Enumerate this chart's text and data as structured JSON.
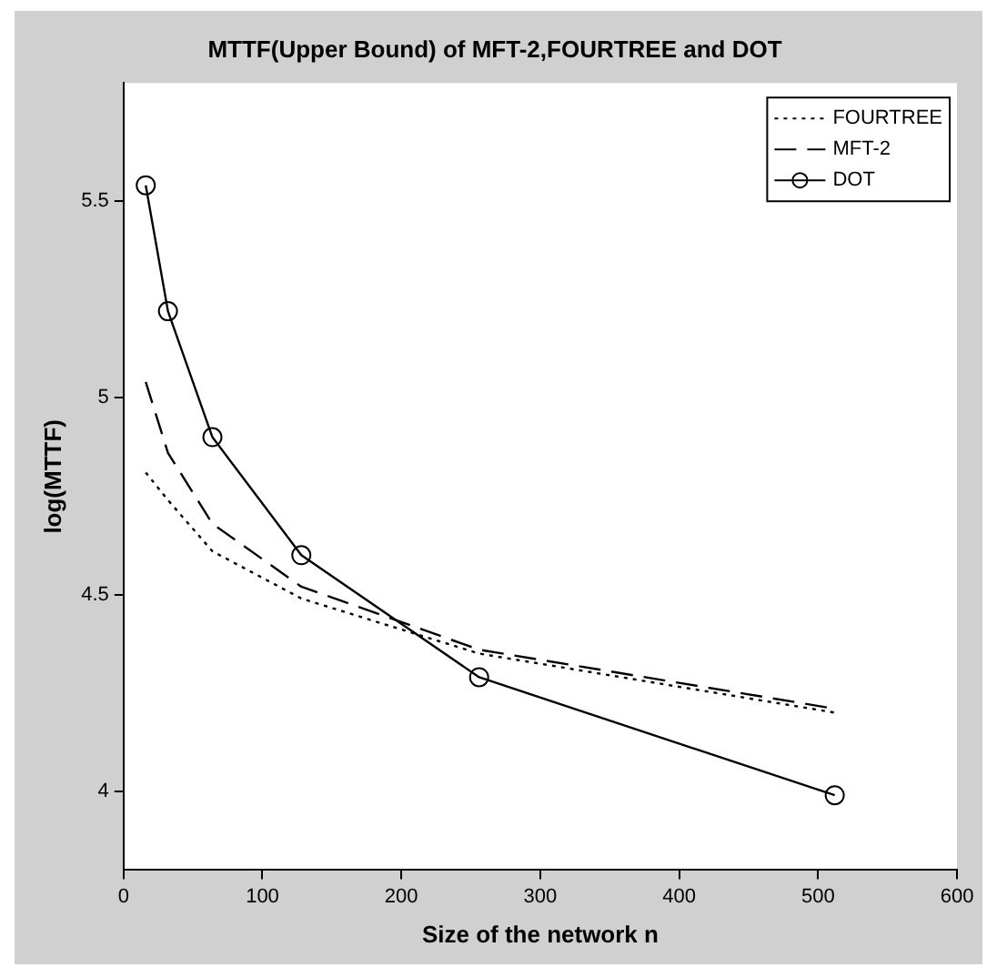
{
  "chart_data": {
    "type": "line",
    "title": "MTTF(Upper Bound) of MFT-2,FOURTREE and DOT",
    "xlabel": "Size of the network n",
    "ylabel": "log(MTTF)",
    "x": [
      16,
      32,
      64,
      128,
      256,
      512
    ],
    "xlim": [
      0,
      600
    ],
    "xticks": [
      0,
      100,
      200,
      300,
      400,
      500,
      600
    ],
    "ylim": [
      3.8,
      5.8
    ],
    "yticks": [
      4,
      4.5,
      5,
      5.5
    ],
    "grid": false,
    "legend": "top right",
    "series": [
      {
        "name": "FOURTREE",
        "color": "#000000",
        "line_style": "dotted",
        "marker": "none",
        "values": [
          4.81,
          4.74,
          4.61,
          4.49,
          4.35,
          4.2
        ]
      },
      {
        "name": "MFT-2",
        "color": "#000000",
        "line_style": "dashed",
        "marker": "none",
        "values": [
          5.04,
          4.86,
          4.68,
          4.52,
          4.36,
          4.21
        ]
      },
      {
        "name": "DOT",
        "color": "#000000",
        "line_style": "solid",
        "marker": "circle",
        "values": [
          5.54,
          5.22,
          4.9,
          4.6,
          4.29,
          3.99
        ]
      }
    ]
  }
}
